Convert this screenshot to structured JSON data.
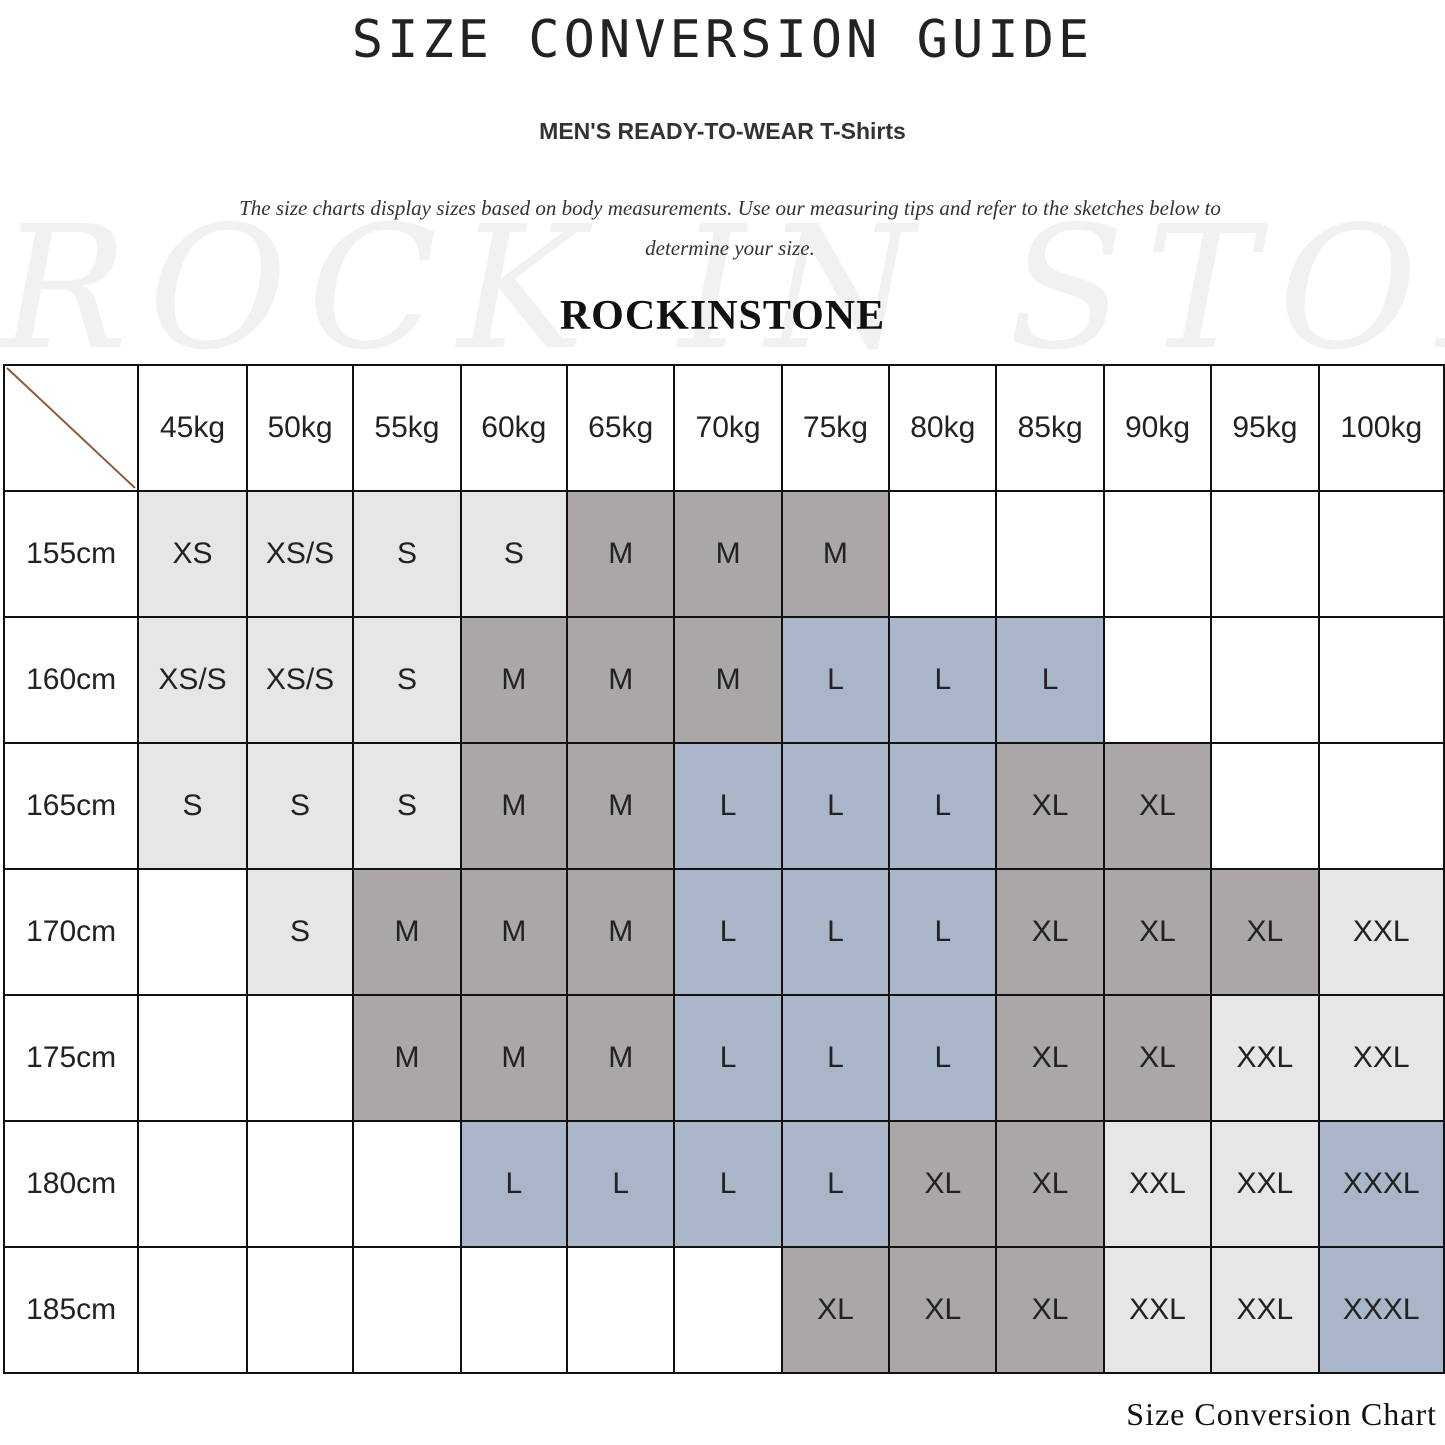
{
  "title": "SIZE CONVERSION GUIDE",
  "subtitle": "MEN'S READY-TO-WEAR T-Shirts",
  "description": "The size charts display sizes based on body measurements. Use our measuring tips and refer to the sketches below to determine your size.",
  "watermark": "ROCK IN STONE",
  "brand": "ROCKINSTONE",
  "footer": "Size Conversion Chart",
  "size_colors": {
    "XS": "#e6e6e6",
    "XS/S": "#e6e6e6",
    "S": "#e6e6e6",
    "M": "#aba7a6",
    "L": "#a9b5c8",
    "XL": "#aba7a6",
    "XXL": "#e6e6e6",
    "XXXL": "#a9b5c8"
  },
  "table": {
    "weights": [
      "45kg",
      "50kg",
      "55kg",
      "60kg",
      "65kg",
      "70kg",
      "75kg",
      "80kg",
      "85kg",
      "90kg",
      "95kg",
      "100kg"
    ],
    "rows": [
      {
        "height": "155cm",
        "sizes": [
          "XS",
          "XS/S",
          "S",
          "S",
          "M",
          "M",
          "M",
          "",
          "",
          "",
          "",
          ""
        ]
      },
      {
        "height": "160cm",
        "sizes": [
          "XS/S",
          "XS/S",
          "S",
          "M",
          "M",
          "M",
          "L",
          "L",
          "L",
          "",
          "",
          ""
        ]
      },
      {
        "height": "165cm",
        "sizes": [
          "S",
          "S",
          "S",
          "M",
          "M",
          "L",
          "L",
          "L",
          "XL",
          "XL",
          "",
          ""
        ]
      },
      {
        "height": "170cm",
        "sizes": [
          "",
          "S",
          "M",
          "M",
          "M",
          "L",
          "L",
          "L",
          "XL",
          "XL",
          "XL",
          "XXL"
        ]
      },
      {
        "height": "175cm",
        "sizes": [
          "",
          "",
          "M",
          "M",
          "M",
          "L",
          "L",
          "L",
          "XL",
          "XL",
          "XXL",
          "XXL"
        ]
      },
      {
        "height": "180cm",
        "sizes": [
          "",
          "",
          "",
          "L",
          "L",
          "L",
          "L",
          "XL",
          "XL",
          "XXL",
          "XXL",
          "XXXL"
        ]
      },
      {
        "height": "185cm",
        "sizes": [
          "",
          "",
          "",
          "",
          "",
          "",
          "XL",
          "XL",
          "XL",
          "XXL",
          "XXL",
          "XXXL"
        ]
      }
    ]
  }
}
